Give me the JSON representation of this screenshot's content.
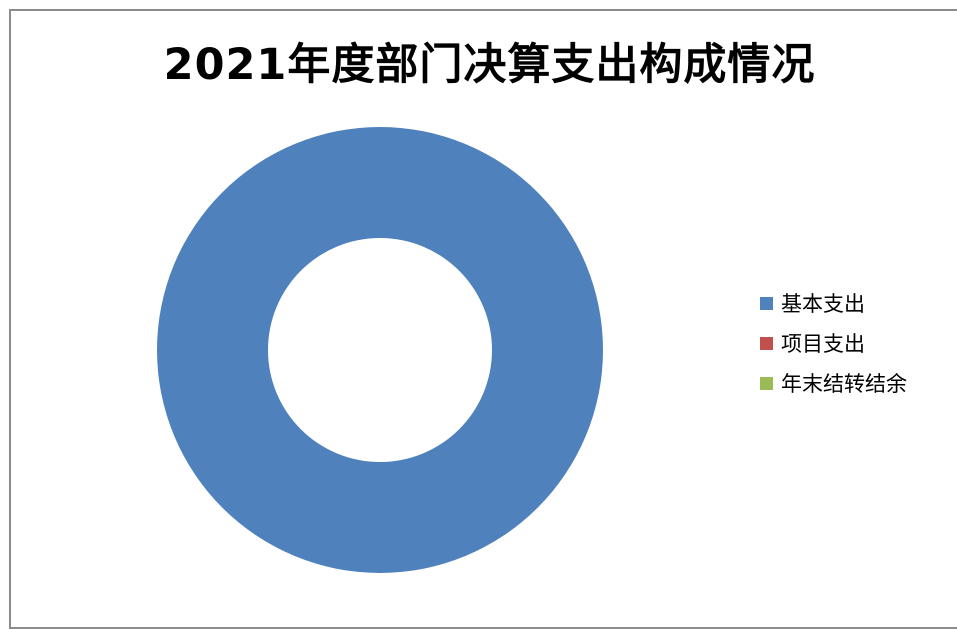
{
  "chart_data": {
    "type": "pie",
    "variant": "doughnut",
    "title": "2021年度部门决算支出构成情况",
    "legend_position": "right",
    "categories": [
      "基本支出",
      "项目支出",
      "年末结转结余"
    ],
    "values": [
      100,
      0,
      0
    ],
    "colors": [
      "#4f81bd",
      "#c0504d",
      "#9bbb59"
    ]
  }
}
